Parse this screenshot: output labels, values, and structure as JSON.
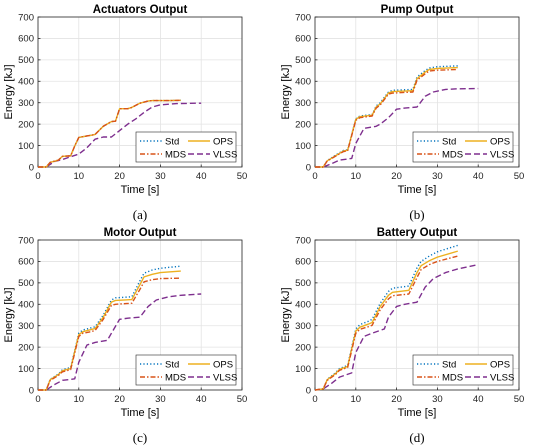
{
  "chart_data": [
    {
      "type": "line",
      "title": "Actuators Output",
      "caption": "(a)",
      "xlabel": "Time [s]",
      "ylabel": "Energy [kJ]",
      "xlim": [
        0,
        50
      ],
      "ylim": [
        0,
        700
      ],
      "xticks": [
        0,
        10,
        20,
        30,
        40,
        50
      ],
      "yticks": [
        0,
        100,
        200,
        300,
        400,
        500,
        600,
        700
      ],
      "grid": true,
      "legend_position": "lower-right",
      "series": [
        {
          "name": "Std",
          "color": "#0072BD",
          "dash": "1.2 2.2",
          "x": [
            0,
            2,
            3,
            5,
            6,
            8,
            9,
            10,
            12,
            13,
            14,
            16,
            18,
            19,
            20,
            22,
            23,
            25,
            27,
            28,
            32,
            35
          ],
          "y": [
            0,
            0,
            22,
            32,
            50,
            52,
            98,
            138,
            145,
            148,
            152,
            190,
            212,
            214,
            272,
            272,
            278,
            298,
            308,
            310,
            310,
            311
          ]
        },
        {
          "name": "MDS",
          "color": "#D95319",
          "dash": "5 2 1.5 2",
          "x": [
            0,
            2,
            3,
            5,
            6,
            8,
            9,
            10,
            12,
            13,
            14,
            16,
            18,
            19,
            20,
            22,
            23,
            25,
            27,
            28,
            32,
            35
          ],
          "y": [
            0,
            0,
            22,
            32,
            50,
            52,
            98,
            138,
            145,
            148,
            152,
            190,
            212,
            214,
            272,
            272,
            278,
            298,
            308,
            310,
            310,
            311
          ]
        },
        {
          "name": "OPS",
          "color": "#EDB120",
          "dash": "",
          "x": [
            0,
            2,
            3,
            5,
            6,
            8,
            9,
            10,
            12,
            13,
            14,
            16,
            18,
            19,
            20,
            22,
            23,
            25,
            27,
            28,
            32,
            35
          ],
          "y": [
            0,
            0,
            22,
            32,
            50,
            52,
            98,
            138,
            145,
            148,
            152,
            190,
            212,
            214,
            272,
            272,
            278,
            298,
            308,
            310,
            310,
            311
          ]
        },
        {
          "name": "VLSS",
          "color": "#7E2F8E",
          "dash": "6 3",
          "x": [
            0,
            2,
            4,
            6,
            8,
            10,
            12,
            14,
            16,
            18,
            20,
            22,
            24,
            26,
            28,
            30,
            34,
            40
          ],
          "y": [
            0,
            0,
            25,
            35,
            48,
            60,
            90,
            130,
            140,
            140,
            170,
            200,
            225,
            255,
            280,
            290,
            296,
            298
          ]
        }
      ]
    },
    {
      "type": "line",
      "title": "Pump Output",
      "caption": "(b)",
      "xlabel": "Time [s]",
      "ylabel": "Energy [kJ]",
      "xlim": [
        0,
        50
      ],
      "ylim": [
        0,
        700
      ],
      "xticks": [
        0,
        10,
        20,
        30,
        40,
        50
      ],
      "yticks": [
        0,
        100,
        200,
        300,
        400,
        500,
        600,
        700
      ],
      "grid": true,
      "legend_position": "lower-right",
      "series": [
        {
          "name": "Std",
          "color": "#0072BD",
          "dash": "1.2 2.2",
          "x": [
            0,
            2,
            3,
            5,
            7,
            8,
            10,
            11,
            14,
            15,
            16,
            18,
            19,
            24,
            25,
            27,
            28,
            30,
            35
          ],
          "y": [
            0,
            0,
            30,
            55,
            78,
            80,
            225,
            238,
            245,
            285,
            300,
            350,
            358,
            362,
            420,
            450,
            462,
            468,
            472
          ]
        },
        {
          "name": "MDS",
          "color": "#D95319",
          "dash": "5 2 1.5 2",
          "x": [
            0,
            2,
            3,
            5,
            7,
            8,
            10,
            11,
            14,
            15,
            16,
            18,
            19,
            24,
            25,
            27,
            28,
            30,
            35
          ],
          "y": [
            0,
            0,
            28,
            50,
            72,
            75,
            218,
            230,
            238,
            275,
            290,
            340,
            345,
            350,
            405,
            435,
            448,
            452,
            455
          ]
        },
        {
          "name": "OPS",
          "color": "#EDB120",
          "dash": "",
          "x": [
            0,
            2,
            3,
            5,
            7,
            8,
            10,
            11,
            14,
            15,
            16,
            18,
            19,
            24,
            25,
            27,
            28,
            30,
            35
          ],
          "y": [
            0,
            0,
            29,
            52,
            75,
            78,
            222,
            235,
            242,
            280,
            295,
            345,
            352,
            356,
            412,
            443,
            455,
            460,
            464
          ]
        },
        {
          "name": "VLSS",
          "color": "#7E2F8E",
          "dash": "6 3",
          "x": [
            0,
            2,
            4,
            6,
            9,
            10,
            12,
            15,
            16,
            18,
            20,
            22,
            25,
            27,
            29,
            32,
            35,
            40
          ],
          "y": [
            0,
            0,
            15,
            32,
            40,
            110,
            180,
            190,
            200,
            230,
            270,
            275,
            280,
            330,
            350,
            362,
            365,
            366
          ]
        }
      ]
    },
    {
      "type": "line",
      "title": "Motor Output",
      "caption": "(c)",
      "xlabel": "Time [s]",
      "ylabel": "Energy [kJ]",
      "xlim": [
        0,
        50
      ],
      "ylim": [
        0,
        700
      ],
      "xticks": [
        0,
        10,
        20,
        30,
        40,
        50
      ],
      "yticks": [
        0,
        100,
        200,
        300,
        400,
        500,
        600,
        700
      ],
      "grid": true,
      "legend_position": "lower-right",
      "series": [
        {
          "name": "Std",
          "color": "#0072BD",
          "dash": "1.2 2.2",
          "x": [
            0,
            2,
            3,
            5,
            6,
            8,
            10,
            11,
            13,
            14,
            16,
            18,
            19,
            23,
            25,
            26,
            28,
            30,
            35
          ],
          "y": [
            0,
            0,
            50,
            75,
            95,
            105,
            265,
            280,
            290,
            295,
            350,
            420,
            430,
            435,
            510,
            545,
            560,
            568,
            578
          ]
        },
        {
          "name": "MDS",
          "color": "#D95319",
          "dash": "5 2 1.5 2",
          "x": [
            0,
            2,
            3,
            5,
            6,
            8,
            10,
            11,
            13,
            14,
            16,
            18,
            19,
            23,
            25,
            26,
            28,
            30,
            35
          ],
          "y": [
            0,
            0,
            45,
            68,
            85,
            95,
            250,
            265,
            272,
            278,
            330,
            395,
            400,
            405,
            470,
            505,
            515,
            520,
            522
          ]
        },
        {
          "name": "OPS",
          "color": "#EDB120",
          "dash": "",
          "x": [
            0,
            2,
            3,
            5,
            6,
            8,
            10,
            11,
            13,
            14,
            16,
            18,
            19,
            23,
            25,
            26,
            28,
            30,
            35
          ],
          "y": [
            0,
            0,
            48,
            72,
            90,
            100,
            258,
            272,
            282,
            287,
            340,
            410,
            418,
            422,
            492,
            528,
            540,
            548,
            555
          ]
        },
        {
          "name": "VLSS",
          "color": "#7E2F8E",
          "dash": "6 3",
          "x": [
            0,
            2,
            4,
            6,
            9,
            10,
            12,
            14,
            17,
            18,
            20,
            22,
            25,
            27,
            29,
            32,
            35,
            40
          ],
          "y": [
            0,
            0,
            25,
            45,
            52,
            130,
            210,
            222,
            232,
            265,
            330,
            335,
            340,
            390,
            420,
            435,
            442,
            448
          ]
        }
      ]
    },
    {
      "type": "line",
      "title": "Battery Output",
      "caption": "(d)",
      "xlabel": "Time [s]",
      "ylabel": "Energy [kJ]",
      "xlim": [
        0,
        50
      ],
      "ylim": [
        0,
        700
      ],
      "xticks": [
        0,
        10,
        20,
        30,
        40,
        50
      ],
      "yticks": [
        0,
        100,
        200,
        300,
        400,
        500,
        600,
        700
      ],
      "grid": true,
      "legend_position": "lower-right",
      "series": [
        {
          "name": "Std",
          "color": "#0072BD",
          "dash": "1.2 2.2",
          "x": [
            0,
            2,
            3,
            5,
            6,
            8,
            10,
            11,
            13,
            14,
            16,
            18,
            19,
            23,
            25,
            26,
            28,
            30,
            35
          ],
          "y": [
            0,
            5,
            50,
            80,
            100,
            115,
            285,
            305,
            320,
            330,
            405,
            460,
            475,
            485,
            570,
            600,
            625,
            645,
            675
          ]
        },
        {
          "name": "MDS",
          "color": "#D95319",
          "dash": "5 2 1.5 2",
          "x": [
            0,
            2,
            3,
            5,
            6,
            8,
            10,
            11,
            13,
            14,
            16,
            18,
            19,
            23,
            25,
            26,
            28,
            30,
            35
          ],
          "y": [
            0,
            5,
            45,
            72,
            92,
            105,
            265,
            283,
            295,
            302,
            375,
            425,
            440,
            448,
            525,
            562,
            585,
            600,
            625
          ]
        },
        {
          "name": "OPS",
          "color": "#EDB120",
          "dash": "",
          "x": [
            0,
            2,
            3,
            5,
            6,
            8,
            10,
            11,
            13,
            14,
            16,
            18,
            19,
            23,
            25,
            26,
            28,
            30,
            35
          ],
          "y": [
            0,
            5,
            48,
            76,
            96,
            110,
            275,
            293,
            307,
            315,
            390,
            442,
            456,
            465,
            548,
            580,
            603,
            620,
            648
          ]
        },
        {
          "name": "VLSS",
          "color": "#7E2F8E",
          "dash": "6 3",
          "x": [
            0,
            2,
            4,
            6,
            9,
            10,
            12,
            14,
            17,
            18,
            20,
            22,
            25,
            27,
            29,
            32,
            35,
            40
          ],
          "y": [
            0,
            5,
            30,
            60,
            80,
            175,
            250,
            265,
            285,
            340,
            390,
            400,
            410,
            480,
            520,
            548,
            565,
            585
          ]
        }
      ]
    }
  ]
}
